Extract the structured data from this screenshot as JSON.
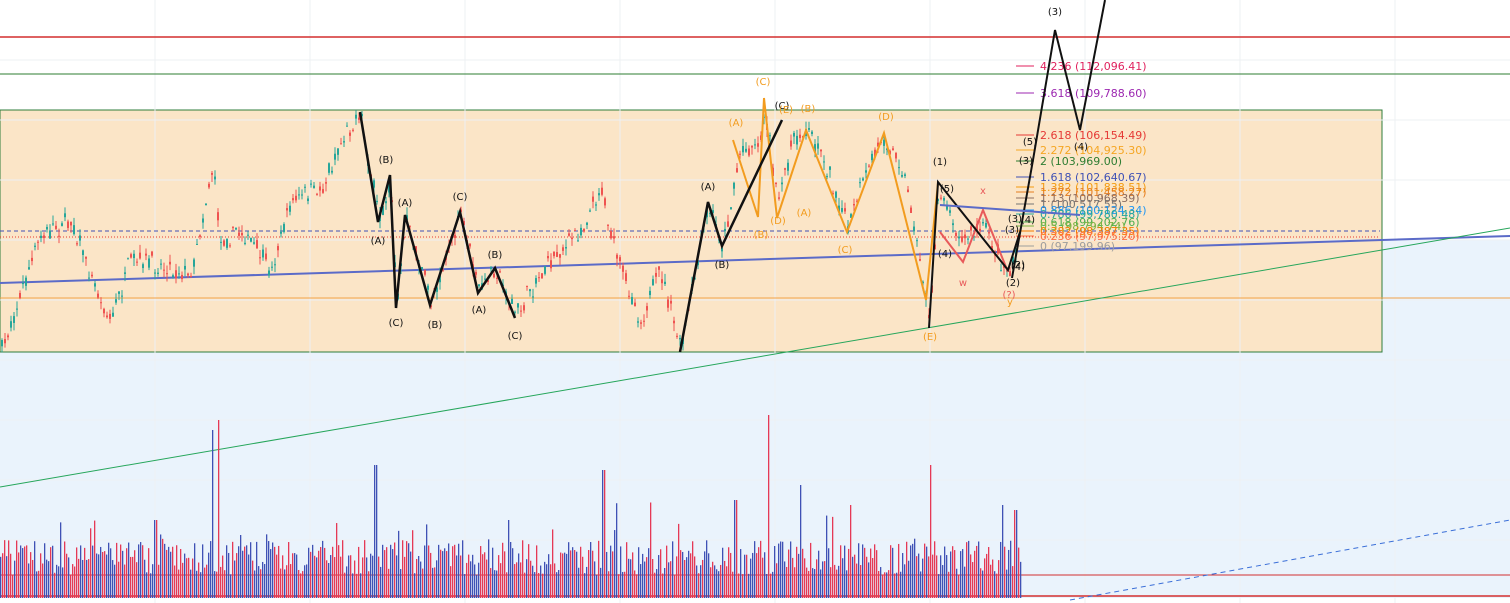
{
  "chart_data": {
    "type": "line",
    "title": "",
    "xlabel": "",
    "ylabel": "",
    "grid": true,
    "colors": {
      "up": "#26a69a",
      "down": "#ef5350",
      "vol_up": "#3f51b5",
      "vol_down": "#e53955",
      "range_fill": "#fbe5c7",
      "below_fill": "#eaf3fc",
      "trend_blue": "#5b6bc8",
      "trend_green": "#26a65b",
      "resistance_red": "#d32f2f",
      "support_orange": "#f0a24a",
      "wave_black": "#111111",
      "wave_orange": "#f29c1f",
      "wave_red": "#e85a5a"
    },
    "fib_levels": [
      {
        "ratio": "4.236",
        "value": "112,096.41",
        "color": "#e0225e"
      },
      {
        "ratio": "3.618",
        "value": "109,788.60",
        "color": "#9c27b0"
      },
      {
        "ratio": "2.618",
        "value": "106,154.49",
        "color": "#e53935"
      },
      {
        "ratio": "2.272",
        "value": "104,925.30",
        "color": "#f5a623"
      },
      {
        "ratio": "2",
        "value": "103,969.00",
        "color": "#2e7d32"
      },
      {
        "ratio": "1.618",
        "value": "102,640.67",
        "color": "#3f51b5"
      },
      {
        "ratio": "1.382",
        "value": "101,838.51",
        "color": "#f39c12"
      },
      {
        "ratio": "1.272",
        "value": "101,458.27",
        "color": "#e67e22"
      },
      {
        "ratio": "1.13",
        "value": "100,968.39",
        "color": "#8d6e63"
      },
      {
        "ratio": "1",
        "value": "100,517.55",
        "color": "#757575"
      },
      {
        "ratio": "0.886",
        "value": "100,124.34",
        "color": "#2196f3"
      },
      {
        "ratio": "0.786",
        "value": "99,780.48",
        "color": "#26a69a"
      },
      {
        "ratio": "0.618",
        "value": "99,202.76",
        "color": "#4caf50"
      },
      {
        "ratio": "0.5",
        "value": "98,794.74",
        "color": "#7cb342"
      },
      {
        "ratio": "0.382",
        "value": "98,387.35",
        "color": "#f57c00"
      },
      {
        "ratio": "0.236",
        "value": "97,975.20",
        "color": "#ff7043"
      },
      {
        "ratio": "0",
        "value": "97,199.96",
        "color": "#9e9e9e"
      }
    ],
    "wave_labels": {
      "black": [
        "(B)",
        "(A)",
        "(A)",
        "(C)",
        "(C)",
        "(B)",
        "(B)",
        "(A)",
        "(C)",
        "(A)",
        "(B)",
        "(C)",
        "(3)",
        "(1)",
        "(5)",
        "(4)",
        "(3)",
        "(5)",
        "(4)",
        "(2)",
        "(2)",
        "(4)",
        "(3)",
        "(4)",
        "(3)"
      ],
      "orange": [
        "(C)",
        "(A)",
        "(E)",
        "(B)",
        "(D)",
        "(D)",
        "(A)",
        "(B)",
        "(C)",
        "(E)",
        "y"
      ],
      "red": [
        "x",
        "w",
        "(?)"
      ]
    }
  }
}
